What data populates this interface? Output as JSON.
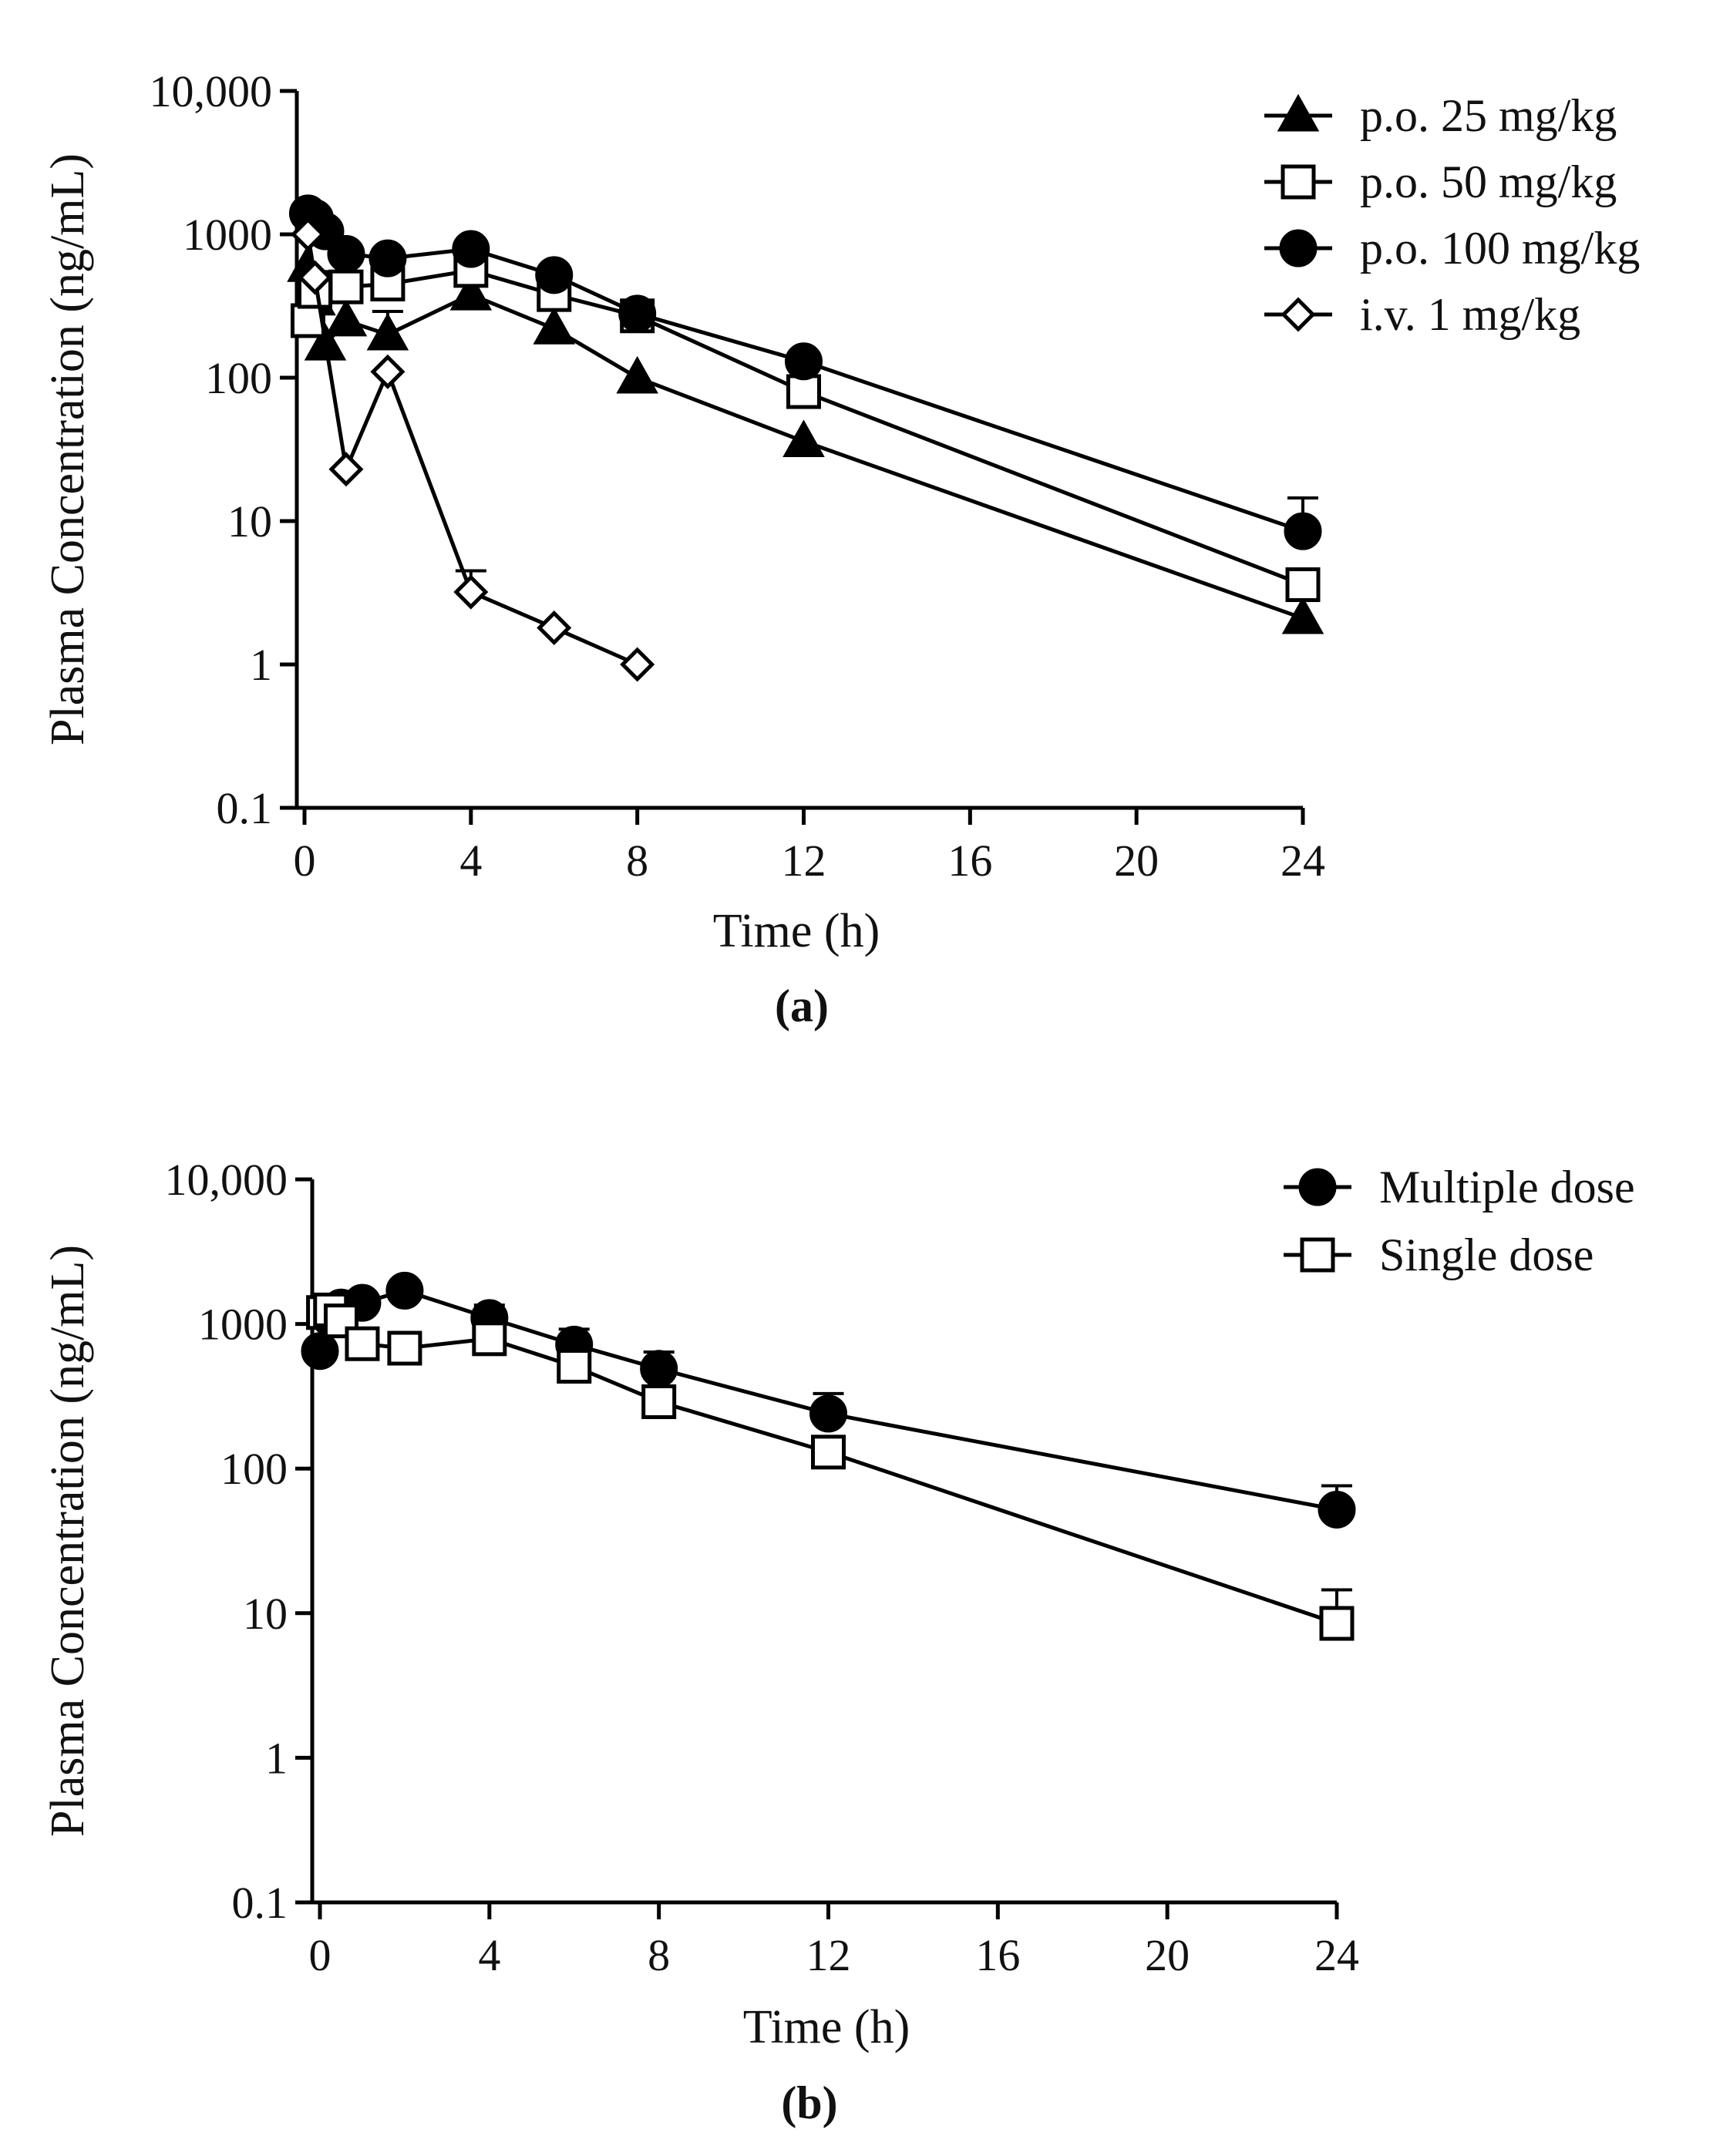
{
  "chart_data": [
    {
      "id": "a",
      "type": "line",
      "panel_label": "(a)",
      "xlabel": "Time (h)",
      "ylabel": "Plasma Concentration (ng/mL)",
      "yscale": "log",
      "xlim": [
        0,
        24
      ],
      "ylim": [
        0.1,
        10000
      ],
      "x_ticks": [
        0,
        4,
        8,
        12,
        16,
        20,
        24
      ],
      "x_tick_labels": [
        "0",
        "4",
        "8",
        "12",
        "16",
        "20",
        "24"
      ],
      "y_ticks": [
        0.1,
        1,
        10,
        100,
        1000,
        10000
      ],
      "y_tick_labels": [
        "0.1",
        "1",
        "10",
        "100",
        "1000",
        "10,000"
      ],
      "legend_position": "top-right",
      "series": [
        {
          "name": "p.o. 25 mg/kg",
          "marker": "triangle-filled",
          "x": [
            0.083,
            0.25,
            0.5,
            1,
            2,
            4,
            6,
            8,
            12,
            24
          ],
          "y": [
            600,
            350,
            170,
            250,
            200,
            380,
            220,
            100,
            36,
            2.1
          ],
          "err": [
            0,
            0,
            0,
            0,
            90,
            0,
            0,
            0,
            0,
            0
          ]
        },
        {
          "name": "p.o. 50 mg/kg",
          "marker": "square-open",
          "x": [
            0.083,
            0.25,
            0.5,
            1,
            2,
            4,
            6,
            8,
            12,
            24
          ],
          "y": [
            250,
            400,
            700,
            430,
            450,
            560,
            380,
            270,
            80,
            3.6
          ],
          "err": [
            0,
            0,
            0,
            0,
            0,
            0,
            0,
            0,
            0,
            0
          ]
        },
        {
          "name": "p.o. 100 mg/kg",
          "marker": "circle-filled",
          "x": [
            0.083,
            0.25,
            0.5,
            1,
            2,
            4,
            6,
            8,
            12,
            24
          ],
          "y": [
            1400,
            1300,
            1050,
            730,
            680,
            790,
            520,
            280,
            130,
            8.5
          ],
          "err": [
            0,
            0,
            0,
            0,
            0,
            0,
            0,
            0,
            0,
            6
          ]
        },
        {
          "name": "i.v. 1 mg/kg",
          "marker": "diamond-open",
          "x": [
            0.083,
            0.25,
            1,
            2,
            4,
            6,
            8
          ],
          "y": [
            1000,
            500,
            23,
            110,
            3.2,
            1.8,
            1
          ],
          "err": [
            0,
            0,
            0,
            0,
            1.3,
            0,
            0
          ]
        }
      ]
    },
    {
      "id": "b",
      "type": "line",
      "panel_label": "(b)",
      "xlabel": "Time (h)",
      "ylabel": "Plasma Concentration (ng/mL)",
      "yscale": "log",
      "xlim": [
        0,
        24
      ],
      "ylim": [
        0.1,
        10000
      ],
      "x_ticks": [
        0,
        4,
        8,
        12,
        16,
        20,
        24
      ],
      "x_tick_labels": [
        "0",
        "4",
        "8",
        "12",
        "16",
        "20",
        "24"
      ],
      "y_ticks": [
        0.1,
        1,
        10,
        100,
        1000,
        10000
      ],
      "y_tick_labels": [
        "0.1",
        "1",
        "10",
        "100",
        "1000",
        "10,000"
      ],
      "legend_position": "top-right",
      "series": [
        {
          "name": "Multiple dose",
          "marker": "circle-filled",
          "x": [
            0,
            0.25,
            0.5,
            1,
            2,
            4,
            6,
            8,
            12,
            24
          ],
          "y": [
            650,
            1100,
            1300,
            1400,
            1700,
            1100,
            720,
            490,
            240,
            52
          ],
          "err": [
            0,
            0,
            0,
            0,
            0,
            250,
            200,
            150,
            90,
            24
          ]
        },
        {
          "name": "Single dose",
          "marker": "square-open",
          "x": [
            0.083,
            0.25,
            0.5,
            1,
            2,
            4,
            6,
            8,
            12,
            24
          ],
          "y": [
            1200,
            1250,
            1050,
            730,
            680,
            790,
            510,
            290,
            130,
            8.5
          ],
          "err": [
            0,
            0,
            0,
            0,
            0,
            0,
            0,
            0,
            0,
            6
          ]
        }
      ]
    }
  ]
}
